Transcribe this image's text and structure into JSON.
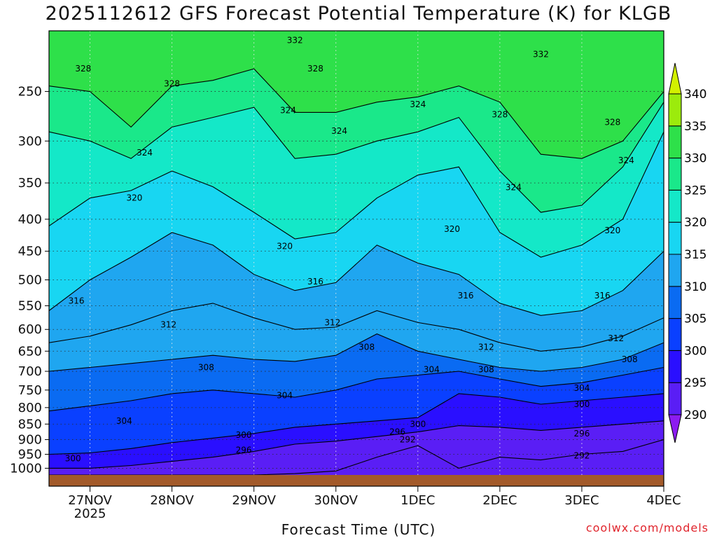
{
  "chart_data": {
    "type": "heatmap",
    "title": "2025112612 GFS Forecast Potential Temperature (K) for KLGB",
    "xlabel": "Forecast Time (UTC)",
    "ylabel": "",
    "credit": "coolwx.com/models",
    "y_scale": "log",
    "y_reversed": true,
    "y_range": [
      1025,
      200
    ],
    "y_ticks": [
      250,
      300,
      350,
      400,
      450,
      500,
      550,
      600,
      650,
      700,
      750,
      800,
      850,
      900,
      950,
      1000
    ],
    "x_range": [
      "2025-11-26 12",
      "2025-12-04 00"
    ],
    "x_ticks": [
      {
        "label": "27NOV",
        "sub": "2025",
        "time": "2025-11-27 00"
      },
      {
        "label": "28NOV",
        "sub": "",
        "time": "2025-11-28 00"
      },
      {
        "label": "29NOV",
        "sub": "",
        "time": "2025-11-29 00"
      },
      {
        "label": "30NOV",
        "sub": "",
        "time": "2025-11-30 00"
      },
      {
        "label": "1DEC",
        "sub": "",
        "time": "2025-12-01 00"
      },
      {
        "label": "2DEC",
        "sub": "",
        "time": "2025-12-02 00"
      },
      {
        "label": "3DEC",
        "sub": "",
        "time": "2025-12-03 00"
      },
      {
        "label": "4DEC",
        "sub": "",
        "time": "2025-12-04 00"
      }
    ],
    "grid": true,
    "colorbar": {
      "levels": [
        290,
        295,
        300,
        305,
        310,
        315,
        320,
        325,
        330,
        335,
        340
      ],
      "colors": [
        "#8c1cf0",
        "#5a1ef5",
        "#2a0fff",
        "#0a40ff",
        "#0a6bf2",
        "#1fa6f0",
        "#18d6f2",
        "#14e8c8",
        "#1ae88a",
        "#2ee04a",
        "#9ceb0c",
        "#d2f000"
      ],
      "extend": "both",
      "placement": "right"
    },
    "series": [
      {
        "theta": 328,
        "x": [
          "2025-11-26 12",
          "2025-11-27 00",
          "2025-11-27 12",
          "2025-11-28 00",
          "2025-11-28 12",
          "2025-11-29 00",
          "2025-11-29 12",
          "2025-11-30 00",
          "2025-11-30 12",
          "2025-12-01 00",
          "2025-12-01 12",
          "2025-12-02 00",
          "2025-12-02 12",
          "2025-12-03 00",
          "2025-12-03 12",
          "2025-12-04 00"
        ],
        "y": [
          245,
          250,
          285,
          245,
          240,
          230,
          270,
          270,
          260,
          255,
          245,
          260,
          315,
          320,
          300,
          250
        ]
      },
      {
        "theta": 324,
        "x": [
          "2025-11-26 12",
          "2025-11-27 00",
          "2025-11-27 12",
          "2025-11-28 00",
          "2025-11-28 12",
          "2025-11-29 00",
          "2025-11-29 12",
          "2025-11-30 00",
          "2025-11-30 12",
          "2025-12-01 00",
          "2025-12-01 12",
          "2025-12-02 00",
          "2025-12-02 12",
          "2025-12-03 00",
          "2025-12-03 12",
          "2025-12-04 00"
        ],
        "y": [
          290,
          300,
          320,
          285,
          275,
          265,
          320,
          315,
          300,
          290,
          275,
          335,
          390,
          380,
          330,
          260
        ]
      },
      {
        "theta": 320,
        "x": [
          "2025-11-26 12",
          "2025-11-27 00",
          "2025-11-27 12",
          "2025-11-28 00",
          "2025-11-28 12",
          "2025-11-29 00",
          "2025-11-29 12",
          "2025-11-30 00",
          "2025-11-30 12",
          "2025-12-01 00",
          "2025-12-01 12",
          "2025-12-02 00",
          "2025-12-02 12",
          "2025-12-03 00",
          "2025-12-03 12",
          "2025-12-04 00"
        ],
        "y": [
          410,
          370,
          360,
          335,
          355,
          390,
          430,
          420,
          370,
          340,
          330,
          420,
          460,
          440,
          400,
          290
        ]
      },
      {
        "theta": 316,
        "x": [
          "2025-11-26 12",
          "2025-11-27 00",
          "2025-11-27 12",
          "2025-11-28 00",
          "2025-11-28 12",
          "2025-11-29 00",
          "2025-11-29 12",
          "2025-11-30 00",
          "2025-11-30 12",
          "2025-12-01 00",
          "2025-12-01 12",
          "2025-12-02 00",
          "2025-12-02 12",
          "2025-12-03 00",
          "2025-12-03 12",
          "2025-12-04 00"
        ],
        "y": [
          560,
          500,
          460,
          420,
          440,
          490,
          520,
          505,
          440,
          470,
          490,
          545,
          570,
          560,
          520,
          450
        ]
      },
      {
        "theta": 312,
        "x": [
          "2025-11-26 12",
          "2025-11-27 00",
          "2025-11-27 12",
          "2025-11-28 00",
          "2025-11-28 12",
          "2025-11-29 00",
          "2025-11-29 12",
          "2025-11-30 00",
          "2025-11-30 12",
          "2025-12-01 00",
          "2025-12-01 12",
          "2025-12-02 00",
          "2025-12-02 12",
          "2025-12-03 00",
          "2025-12-03 12",
          "2025-12-04 00"
        ],
        "y": [
          630,
          615,
          590,
          560,
          545,
          575,
          600,
          595,
          560,
          585,
          600,
          630,
          650,
          640,
          615,
          575
        ]
      },
      {
        "theta": 308,
        "x": [
          "2025-11-26 12",
          "2025-11-27 00",
          "2025-11-27 12",
          "2025-11-28 00",
          "2025-11-28 12",
          "2025-11-29 00",
          "2025-11-29 12",
          "2025-11-30 00",
          "2025-11-30 12",
          "2025-12-01 00",
          "2025-12-01 12",
          "2025-12-02 00",
          "2025-12-02 12",
          "2025-12-03 00",
          "2025-12-03 12",
          "2025-12-04 00"
        ],
        "y": [
          700,
          690,
          680,
          670,
          660,
          670,
          675,
          660,
          610,
          650,
          670,
          690,
          700,
          690,
          670,
          630
        ]
      },
      {
        "theta": 304,
        "x": [
          "2025-11-26 12",
          "2025-11-27 00",
          "2025-11-27 12",
          "2025-11-28 00",
          "2025-11-28 12",
          "2025-11-29 00",
          "2025-11-29 12",
          "2025-11-30 00",
          "2025-11-30 12",
          "2025-12-01 00",
          "2025-12-01 12",
          "2025-12-02 00",
          "2025-12-02 12",
          "2025-12-03 00",
          "2025-12-03 12",
          "2025-12-04 00"
        ],
        "y": [
          810,
          795,
          780,
          760,
          750,
          760,
          770,
          750,
          720,
          710,
          700,
          720,
          740,
          730,
          710,
          690
        ]
      },
      {
        "theta": 300,
        "x": [
          "2025-11-26 12",
          "2025-11-27 00",
          "2025-11-27 12",
          "2025-11-28 00",
          "2025-11-28 12",
          "2025-11-29 00",
          "2025-11-29 12",
          "2025-11-30 00",
          "2025-11-30 12",
          "2025-12-01 00",
          "2025-12-01 12",
          "2025-12-02 00",
          "2025-12-02 12",
          "2025-12-03 00",
          "2025-12-03 12",
          "2025-12-04 00"
        ],
        "y": [
          950,
          945,
          930,
          910,
          895,
          880,
          860,
          850,
          840,
          830,
          760,
          770,
          790,
          780,
          770,
          760
        ]
      },
      {
        "theta": 296,
        "x": [
          "2025-11-26 12",
          "2025-11-27 00",
          "2025-11-27 12",
          "2025-11-28 00",
          "2025-11-28 12",
          "2025-11-29 00",
          "2025-11-29 12",
          "2025-11-30 00",
          "2025-11-30 12",
          "2025-12-01 00",
          "2025-12-01 12",
          "2025-12-02 00",
          "2025-12-02 12",
          "2025-12-03 00",
          "2025-12-03 12",
          "2025-12-04 00"
        ],
        "y": [
          1000,
          1000,
          990,
          975,
          960,
          940,
          915,
          905,
          890,
          875,
          855,
          860,
          870,
          860,
          850,
          840
        ]
      },
      {
        "theta": 292,
        "x": [
          "2025-11-26 12",
          "2025-11-27 00",
          "2025-11-27 12",
          "2025-11-28 00",
          "2025-11-28 12",
          "2025-11-29 00",
          "2025-11-29 12",
          "2025-11-30 00",
          "2025-11-30 12",
          "2025-12-01 00",
          "2025-12-01 12",
          "2025-12-02 00",
          "2025-12-02 12",
          "2025-12-03 00",
          "2025-12-03 12",
          "2025-12-04 00"
        ],
        "y": [
          1025,
          1025,
          1025,
          1025,
          1025,
          1025,
          1020,
          1010,
          960,
          920,
          1000,
          960,
          970,
          950,
          940,
          900
        ]
      }
    ],
    "contour_labels": [
      {
        "text": "332",
        "time": "2025-11-29 12",
        "p": 207
      },
      {
        "text": "332",
        "time": "2025-12-02 12",
        "p": 218
      },
      {
        "text": "328",
        "time": "2025-11-26 22",
        "p": 230
      },
      {
        "text": "328",
        "time": "2025-11-28 00",
        "p": 243
      },
      {
        "text": "328",
        "time": "2025-11-29 18",
        "p": 230
      },
      {
        "text": "328",
        "time": "2025-12-02 00",
        "p": 272
      },
      {
        "text": "328",
        "time": "2025-12-03 09",
        "p": 280
      },
      {
        "text": "324",
        "time": "2025-11-27 16",
        "p": 313
      },
      {
        "text": "324",
        "time": "2025-11-29 10",
        "p": 268
      },
      {
        "text": "324",
        "time": "2025-11-30 01",
        "p": 289
      },
      {
        "text": "324",
        "time": "2025-12-01 00",
        "p": 262
      },
      {
        "text": "324",
        "time": "2025-12-03 13",
        "p": 322
      },
      {
        "text": "324",
        "time": "2025-12-02 04",
        "p": 356
      },
      {
        "text": "320",
        "time": "2025-11-27 13",
        "p": 370
      },
      {
        "text": "320",
        "time": "2025-11-29 09",
        "p": 442
      },
      {
        "text": "320",
        "time": "2025-12-01 10",
        "p": 415
      },
      {
        "text": "320",
        "time": "2025-12-03 09",
        "p": 417
      },
      {
        "text": "316",
        "time": "2025-11-26 20",
        "p": 540
      },
      {
        "text": "316",
        "time": "2025-11-29 18",
        "p": 503
      },
      {
        "text": "316",
        "time": "2025-12-01 14",
        "p": 530
      },
      {
        "text": "316",
        "time": "2025-12-03 06",
        "p": 530
      },
      {
        "text": "312",
        "time": "2025-11-27 23",
        "p": 590
      },
      {
        "text": "312",
        "time": "2025-11-29 23",
        "p": 585
      },
      {
        "text": "312",
        "time": "2025-12-01 20",
        "p": 640
      },
      {
        "text": "312",
        "time": "2025-12-03 10",
        "p": 620
      },
      {
        "text": "308",
        "time": "2025-11-28 10",
        "p": 690
      },
      {
        "text": "308",
        "time": "2025-11-30 09",
        "p": 640
      },
      {
        "text": "308",
        "time": "2025-12-01 20",
        "p": 695
      },
      {
        "text": "308",
        "time": "2025-12-03 14",
        "p": 670
      },
      {
        "text": "304",
        "time": "2025-11-27 10",
        "p": 840
      },
      {
        "text": "304",
        "time": "2025-11-29 09",
        "p": 765
      },
      {
        "text": "304",
        "time": "2025-12-01 04",
        "p": 695
      },
      {
        "text": "304",
        "time": "2025-12-03 00",
        "p": 745
      },
      {
        "text": "300",
        "time": "2025-11-26 19",
        "p": 965
      },
      {
        "text": "300",
        "time": "2025-11-28 21",
        "p": 885
      },
      {
        "text": "300",
        "time": "2025-12-01 00",
        "p": 850
      },
      {
        "text": "300",
        "time": "2025-12-03 00",
        "p": 790
      },
      {
        "text": "296",
        "time": "2025-11-28 21",
        "p": 935
      },
      {
        "text": "296",
        "time": "2025-11-30 18",
        "p": 875
      },
      {
        "text": "296",
        "time": "2025-12-03 00",
        "p": 880
      },
      {
        "text": "292",
        "time": "2025-11-30 21",
        "p": 900
      },
      {
        "text": "292",
        "time": "2025-12-03 00",
        "p": 955
      }
    ]
  }
}
